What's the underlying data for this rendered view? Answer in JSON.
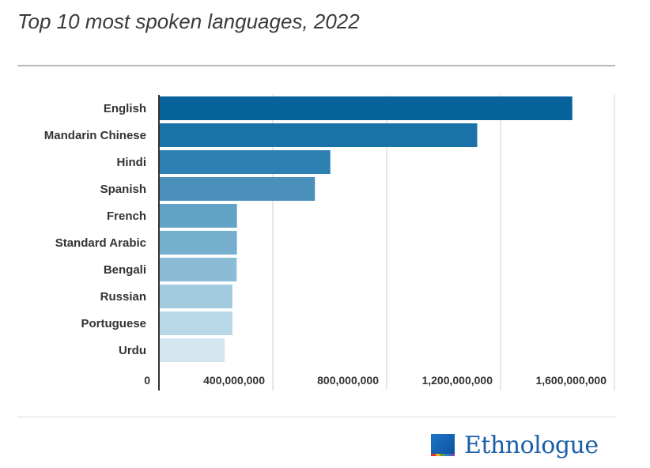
{
  "title": "Top 10 most spoken languages, 2022",
  "logo": {
    "text": "Ethnologue",
    "color": "#1a5fa8"
  },
  "chart_data": {
    "type": "bar",
    "orientation": "horizontal",
    "title": "Top 10 most spoken languages, 2022",
    "xlabel": "",
    "ylabel": "",
    "categories": [
      "English",
      "Mandarin Chinese",
      "Hindi",
      "Spanish",
      "French",
      "Standard Arabic",
      "Bengali",
      "Russian",
      "Portuguese",
      "Urdu"
    ],
    "values": [
      1452000000,
      1118000000,
      602000000,
      548000000,
      274000000,
      274000000,
      273000000,
      258000000,
      258000000,
      231000000
    ],
    "xlim": [
      0,
      1600000000
    ],
    "x_ticks": [
      0,
      400000000,
      800000000,
      1200000000,
      1600000000
    ],
    "x_tick_labels": [
      "0",
      "400,000,000",
      "800,000,000",
      "1,200,000,000",
      "1,600,000,000"
    ],
    "grid": true,
    "legend": "none",
    "bar_colors": [
      "#08629c",
      "#1a72a8",
      "#2f80b2",
      "#4a90bb",
      "#62a2c7",
      "#76afce",
      "#8abcd6",
      "#a2cbe0",
      "#b8d8e8",
      "#d3e6f0"
    ]
  }
}
